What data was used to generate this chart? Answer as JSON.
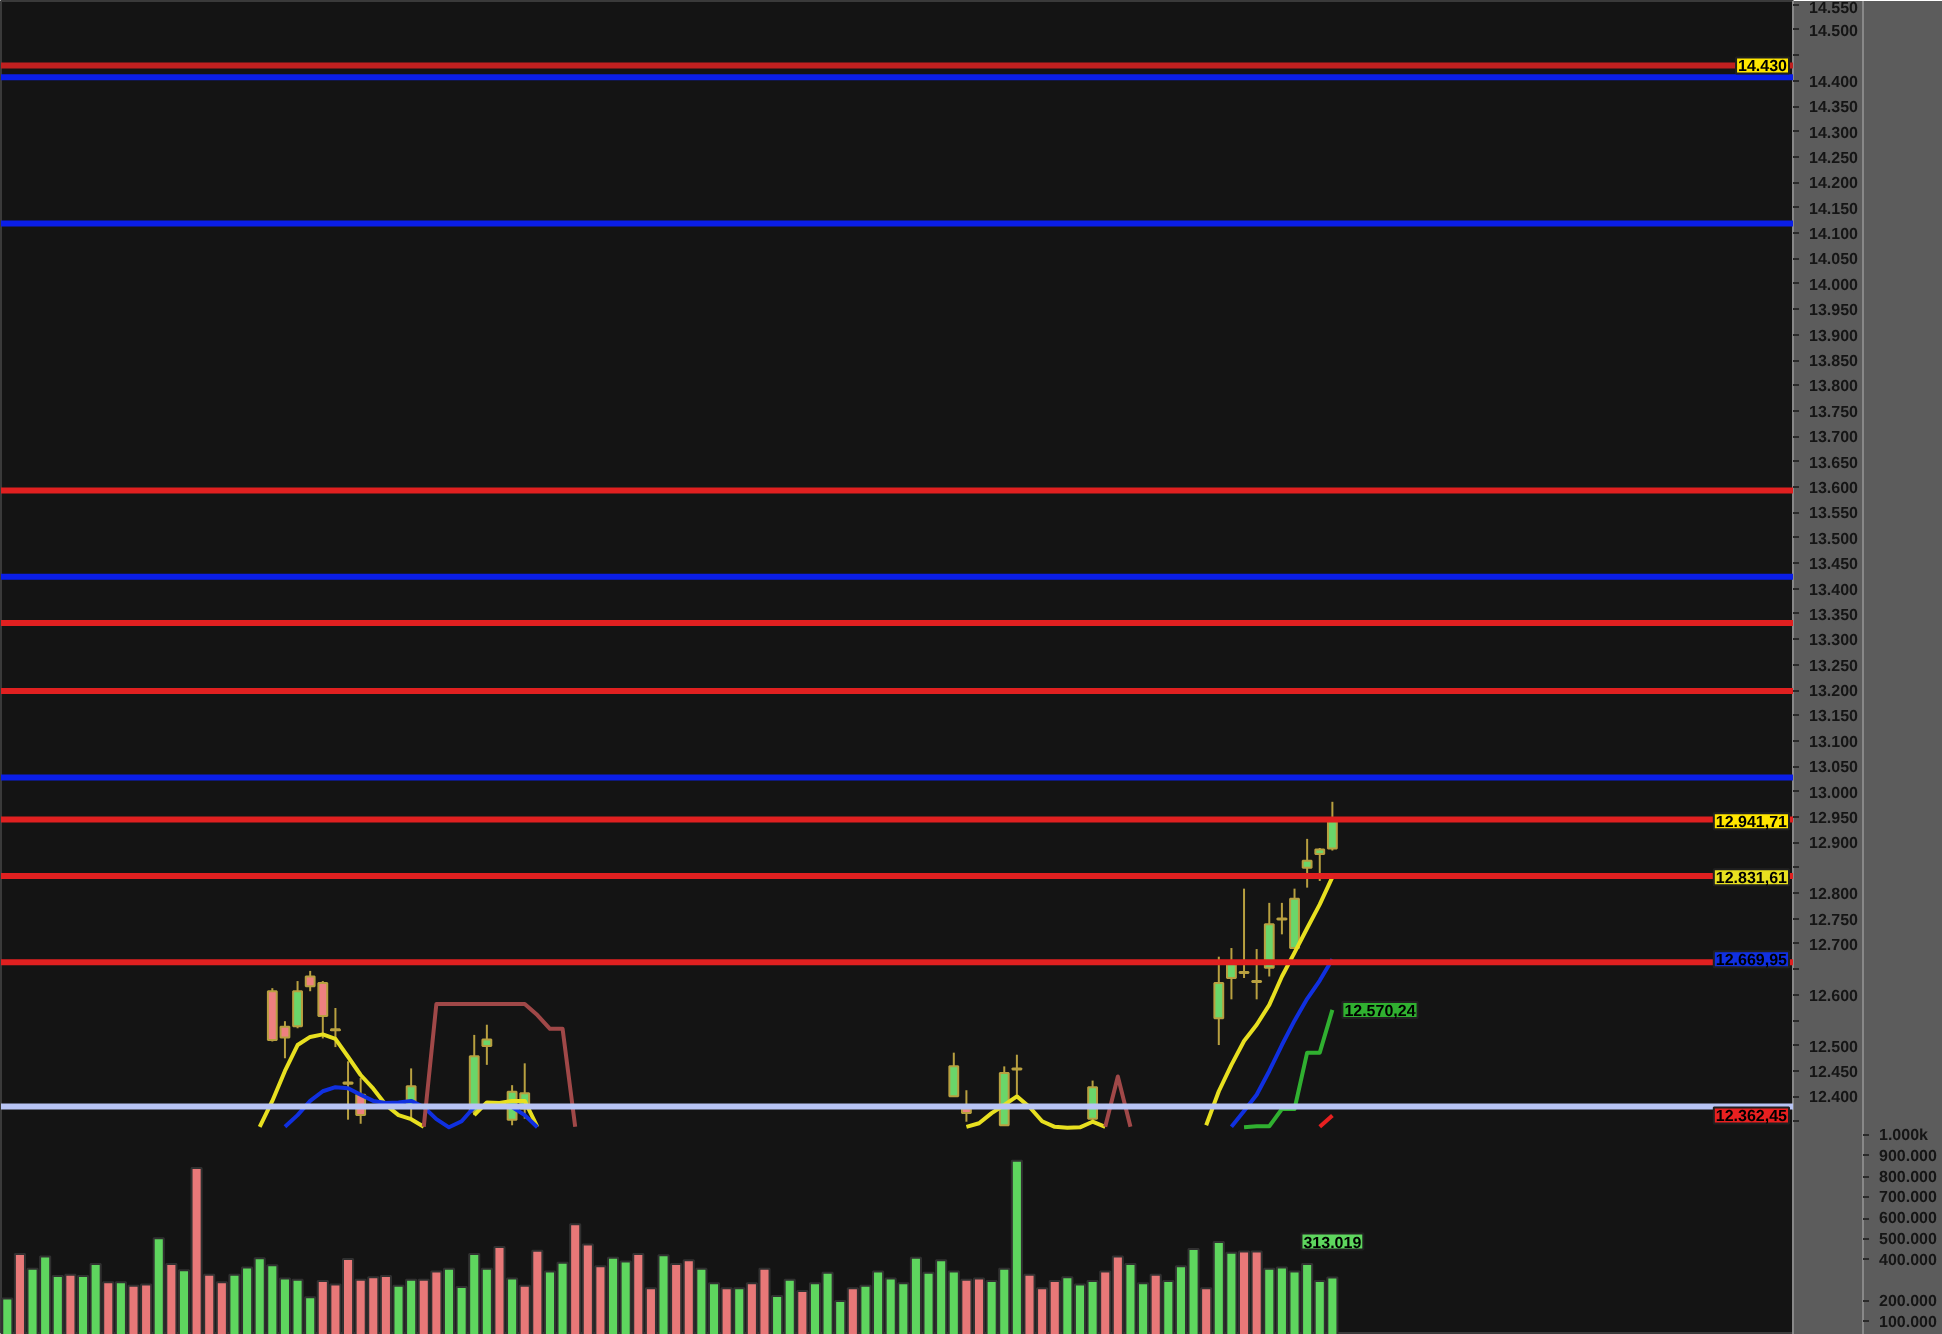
{
  "chart_data": {
    "type": "candlestick",
    "categories": [
      null,
      null,
      null,
      null,
      null,
      null,
      null,
      null,
      null,
      null,
      null,
      null,
      null,
      null,
      null,
      null,
      null,
      null,
      null,
      null,
      null,
      null,
      null,
      null,
      null,
      null,
      null,
      null,
      null,
      null,
      null,
      null,
      null,
      null,
      null,
      null,
      null,
      null,
      null,
      null,
      null,
      null,
      null,
      null,
      null,
      null,
      null,
      null,
      null,
      null,
      null,
      null,
      null,
      null,
      null,
      null,
      null,
      null,
      null,
      null,
      null,
      null,
      null,
      null,
      null,
      null,
      null,
      null,
      null,
      null,
      null,
      null,
      null,
      null,
      null,
      null,
      null,
      null,
      null,
      null,
      null,
      null,
      null,
      null,
      null,
      null,
      null,
      null,
      null,
      null,
      null,
      null,
      null,
      null,
      null,
      null,
      null,
      null,
      null,
      null,
      null,
      null,
      null,
      null,
      null,
      null,
      null,
      null,
      null,
      null,
      null,
      null,
      null,
      null,
      null,
      null,
      null,
      null,
      null,
      null,
      null,
      null,
      null,
      null,
      null,
      null,
      null,
      null,
      null,
      null,
      null,
      null,
      null,
      null,
      null,
      null,
      null,
      null,
      null,
      null,
      null,
      null
    ],
    "ohlc": [
      null,
      null,
      null,
      null,
      null,
      null,
      null,
      null,
      null,
      null,
      null,
      null,
      null,
      null,
      null,
      null,
      null,
      null,
      null,
      null,
      null,
      [
        12607,
        12613,
        12508,
        12511
      ],
      [
        12537,
        12548,
        12475,
        12516
      ],
      [
        12538,
        12627,
        12534,
        12607
      ],
      [
        12636,
        12647,
        12607,
        12617
      ],
      [
        12623,
        12627,
        12514,
        12558
      ],
      [
        12532,
        12574,
        12497,
        12530
      ],
      [
        12425,
        12469,
        12354,
        12427
      ],
      [
        12403,
        12436,
        12346,
        12363
      ],
      null,
      null,
      null,
      [
        12383,
        12455,
        12354,
        12420
      ],
      null,
      null,
      null,
      null,
      [
        12370,
        12521,
        12363,
        12479
      ],
      [
        12499,
        12541,
        12462,
        12512
      ],
      null,
      [
        12354,
        12422,
        12343,
        12409
      ],
      [
        12376,
        12465,
        12356,
        12406
      ],
      null,
      null,
      null,
      null,
      null,
      null,
      null,
      null,
      null,
      null,
      null,
      null,
      null,
      null,
      null,
      null,
      null,
      null,
      null,
      null,
      null,
      null,
      null,
      null,
      null,
      null,
      null,
      null,
      null,
      null,
      null,
      null,
      null,
      [
        12400,
        12486,
        12400,
        12459
      ],
      [
        12376,
        12412,
        12350,
        12367
      ],
      null,
      null,
      [
        12343,
        12459,
        12343,
        12446
      ],
      [
        12455,
        12482,
        12403,
        12453
      ],
      null,
      null,
      null,
      null,
      null,
      [
        12356,
        12431,
        12351,
        12418
      ],
      null,
      null,
      null,
      null,
      null,
      null,
      null,
      null,
      null,
      [
        12554,
        12675,
        12501,
        12623
      ],
      [
        12633,
        12692,
        12591,
        12662
      ],
      [
        12645,
        12809,
        12633,
        12643
      ],
      [
        12625,
        12690,
        12591,
        12627
      ],
      [
        12653,
        12781,
        12636,
        12739
      ],
      [
        12748,
        12781,
        12719,
        12750
      ],
      [
        12692,
        12809,
        12692,
        12789
      ],
      [
        12850,
        12907,
        12811,
        12864
      ],
      [
        12877,
        12889,
        12824,
        12886
      ],
      [
        12888,
        12980,
        12884,
        12941.71
      ],
      null,
      null,
      null,
      null,
      null,
      null,
      null,
      null,
      null,
      null,
      null,
      null,
      null,
      null,
      null,
      null,
      null,
      null,
      null,
      null,
      null,
      null,
      null,
      null,
      null,
      null,
      null,
      null,
      null,
      null,
      null,
      null,
      null,
      null,
      null,
      null
    ],
    "series": [
      {
        "type": "line",
        "color": "#e8e020",
        "values": [
          null,
          null,
          null,
          null,
          null,
          null,
          null,
          null,
          null,
          null,
          null,
          null,
          null,
          null,
          null,
          null,
          null,
          null,
          null,
          null,
          12340,
          12391,
          12450,
          12501,
          12517,
          12522,
          12513,
          12478,
          12442,
          12415,
          12383,
          12363,
          12355,
          12340,
          null,
          null,
          null,
          12363,
          12388,
          12387,
          12391,
          12391,
          12340,
          null,
          null,
          null,
          null,
          null,
          null,
          null,
          null,
          null,
          null,
          null,
          null,
          null,
          null,
          null,
          null,
          null,
          null,
          null,
          null,
          null,
          null,
          null,
          null,
          null,
          null,
          null,
          null,
          null,
          null,
          null,
          null,
          null,
          12340,
          12347,
          12367,
          12383,
          12400,
          12379,
          12351,
          12340,
          12338,
          12339,
          12350,
          12340,
          null,
          null,
          null,
          null,
          null,
          null,
          null,
          12343,
          12410,
          12462,
          12509,
          12541,
          12580,
          12636,
          12683,
          12731,
          12778,
          12831.61,
          null,
          null,
          null,
          null,
          null,
          null,
          null,
          null,
          null,
          null,
          null,
          null,
          null,
          null,
          null,
          null,
          null,
          null,
          null,
          null,
          null,
          null,
          null,
          null,
          null,
          null,
          null,
          null,
          null,
          null,
          null,
          null,
          null,
          null,
          null,
          null
        ]
      },
      {
        "type": "line",
        "color": "#1030e0",
        "values": [
          null,
          null,
          null,
          null,
          null,
          null,
          null,
          null,
          null,
          null,
          null,
          null,
          null,
          null,
          null,
          null,
          null,
          null,
          null,
          null,
          null,
          null,
          12340,
          12363,
          12391,
          12410,
          12418,
          12416,
          12403,
          12391,
          12387,
          12388,
          12391,
          12379,
          12355,
          12339,
          12351,
          12379,
          12379,
          12379,
          12379,
          12363,
          12339,
          null,
          null,
          null,
          null,
          null,
          null,
          null,
          null,
          null,
          null,
          null,
          null,
          null,
          null,
          null,
          null,
          null,
          null,
          null,
          null,
          null,
          null,
          null,
          null,
          null,
          null,
          null,
          null,
          null,
          null,
          null,
          null,
          null,
          null,
          null,
          null,
          null,
          null,
          null,
          null,
          null,
          null,
          null,
          null,
          null,
          null,
          null,
          null,
          null,
          null,
          null,
          null,
          null,
          null,
          12340,
          12371,
          12403,
          12450,
          12501,
          12549,
          12592,
          12628,
          12669.95,
          null,
          null,
          null,
          null,
          null,
          null,
          null,
          null,
          null,
          null,
          null,
          null,
          null,
          null,
          null,
          null,
          null,
          null,
          null,
          null,
          null,
          null,
          null,
          null,
          null,
          null,
          null,
          null,
          null,
          null,
          null,
          null,
          null,
          null,
          null,
          null
        ]
      },
      {
        "type": "line",
        "color": "#30b030",
        "values": [
          null,
          null,
          null,
          null,
          null,
          null,
          null,
          null,
          null,
          null,
          null,
          null,
          null,
          null,
          null,
          null,
          null,
          null,
          null,
          null,
          null,
          null,
          null,
          null,
          null,
          null,
          null,
          null,
          null,
          null,
          null,
          null,
          null,
          null,
          null,
          null,
          null,
          null,
          null,
          null,
          null,
          null,
          null,
          null,
          null,
          null,
          null,
          null,
          null,
          null,
          null,
          null,
          null,
          null,
          null,
          null,
          null,
          null,
          null,
          null,
          null,
          null,
          null,
          null,
          null,
          null,
          null,
          null,
          null,
          null,
          null,
          null,
          null,
          null,
          null,
          null,
          null,
          null,
          null,
          null,
          null,
          null,
          null,
          null,
          null,
          null,
          null,
          null,
          null,
          null,
          null,
          null,
          null,
          null,
          null,
          null,
          null,
          null,
          12339,
          12341,
          12341,
          12375,
          12375,
          12486,
          12486,
          12570.24,
          null,
          null,
          null,
          null,
          null,
          null,
          null,
          null,
          null,
          null,
          null,
          null,
          null,
          null,
          null,
          null,
          null,
          null,
          null,
          null,
          null,
          null,
          null,
          null,
          null,
          null,
          null,
          null,
          null,
          null,
          null,
          null,
          null,
          null,
          null,
          null
        ],
        "value_labels": [
          null,
          null,
          null,
          null,
          null,
          null,
          null,
          null,
          null,
          null,
          null,
          null,
          null,
          null,
          null,
          null,
          null,
          null,
          null,
          null,
          null,
          null,
          null,
          null,
          null,
          null,
          null,
          null,
          null,
          null,
          null,
          null,
          null,
          null,
          null,
          null,
          null,
          null,
          null,
          null,
          null,
          null,
          null,
          null,
          null,
          null,
          null,
          null,
          null,
          null,
          null,
          null,
          null,
          null,
          null,
          null,
          null,
          null,
          null,
          null,
          null,
          null,
          null,
          null,
          null,
          null,
          null,
          null,
          null,
          null,
          null,
          null,
          null,
          null,
          null,
          null,
          null,
          null,
          null,
          null,
          null,
          null,
          null,
          null,
          null,
          null,
          null,
          null,
          null,
          null,
          null,
          null,
          null,
          null,
          null,
          null,
          null,
          null,
          null,
          null,
          null,
          null,
          null,
          null,
          null,
          "12.570,24",
          null,
          null,
          null,
          null,
          null,
          null,
          null,
          null,
          null,
          null,
          null,
          null,
          null,
          null,
          null,
          null,
          null,
          null,
          null,
          null,
          null,
          null,
          null,
          null,
          null,
          null,
          null,
          null,
          null,
          null,
          null,
          null,
          null,
          null,
          null,
          null
        ]
      },
      {
        "type": "line",
        "color": "#e82020",
        "values": [
          null,
          null,
          null,
          null,
          null,
          null,
          null,
          null,
          null,
          null,
          null,
          null,
          null,
          null,
          null,
          null,
          null,
          null,
          null,
          null,
          null,
          null,
          null,
          null,
          null,
          null,
          null,
          null,
          null,
          null,
          null,
          null,
          null,
          null,
          null,
          null,
          null,
          null,
          null,
          null,
          null,
          null,
          null,
          null,
          null,
          null,
          null,
          null,
          null,
          null,
          null,
          null,
          null,
          null,
          null,
          null,
          null,
          null,
          null,
          null,
          null,
          null,
          null,
          null,
          null,
          null,
          null,
          null,
          null,
          null,
          null,
          null,
          null,
          null,
          null,
          null,
          null,
          null,
          null,
          null,
          null,
          null,
          null,
          null,
          null,
          null,
          null,
          null,
          null,
          null,
          null,
          null,
          null,
          null,
          null,
          null,
          null,
          null,
          null,
          null,
          null,
          null,
          null,
          null,
          12340,
          12362.45,
          null,
          null,
          null,
          null,
          null,
          null,
          null,
          null,
          null,
          null,
          null,
          null,
          null,
          null,
          null,
          null,
          null,
          null,
          null,
          null,
          null,
          null,
          null,
          null,
          null,
          null,
          null,
          null,
          null,
          null,
          null,
          null,
          null,
          null,
          null,
          null
        ]
      },
      {
        "type": "line",
        "color": "#a04848",
        "values": [
          null,
          null,
          null,
          null,
          null,
          null,
          null,
          null,
          null,
          null,
          null,
          null,
          null,
          null,
          null,
          null,
          null,
          null,
          null,
          null,
          null,
          null,
          null,
          null,
          null,
          null,
          null,
          null,
          null,
          null,
          null,
          null,
          null,
          12340,
          12582,
          12582,
          12582,
          12582,
          12582,
          12582,
          12582,
          12582,
          12560,
          12533,
          12533,
          12340,
          null,
          null,
          null,
          null,
          null,
          null,
          null,
          null,
          null,
          null,
          null,
          null,
          null,
          null,
          null,
          null,
          null,
          null,
          null,
          null,
          null,
          null,
          null,
          null,
          null,
          null,
          null,
          null,
          null,
          null,
          null,
          null,
          null,
          null,
          null,
          null,
          null,
          null,
          null,
          null,
          null,
          12340,
          12439,
          12340,
          null,
          null,
          null,
          null,
          null,
          null,
          null,
          null,
          null,
          null,
          null,
          null,
          null,
          null,
          null,
          null,
          null,
          null,
          null,
          null,
          null,
          null,
          null,
          null,
          null,
          null,
          null,
          null,
          null,
          null,
          null,
          null,
          null,
          null,
          null,
          null,
          null,
          null,
          null,
          null,
          null,
          null,
          null,
          null,
          null,
          null,
          null,
          null,
          null,
          null,
          null,
          null
        ]
      },
      {
        "type": "bar",
        "axis": "y2",
        "values": [
          212000,
          427000,
          355000,
          415000,
          321000,
          327000,
          321000,
          379000,
          291000,
          291000,
          273000,
          279000,
          503000,
          379000,
          348000,
          842000,
          327000,
          291000,
          327000,
          361000,
          406000,
          373000,
          309000,
          303000,
          218000,
          297000,
          279000,
          403000,
          303000,
          315000,
          321000,
          273000,
          303000,
          303000,
          342000,
          355000,
          267000,
          427000,
          355000,
          461000,
          309000,
          273000,
          442000,
          342000,
          385000,
          570000,
          473000,
          367000,
          409000,
          391000,
          427000,
          261000,
          421000,
          379000,
          397000,
          355000,
          285000,
          261000,
          261000,
          285000,
          355000,
          224000,
          303000,
          248000,
          285000,
          336000,
          200000,
          261000,
          273000,
          342000,
          309000,
          285000,
          409000,
          336000,
          397000,
          342000,
          303000,
          309000,
          297000,
          355000,
          876000,
          327000,
          261000,
          297000,
          315000,
          279000,
          297000,
          342000,
          415000,
          379000,
          285000,
          327000,
          297000,
          367000,
          451000,
          261000,
          485000,
          433000,
          439000,
          439000,
          355000,
          361000,
          342000,
          379000,
          297000,
          313019,
          null,
          null,
          null,
          null,
          null,
          null,
          null,
          null,
          null,
          null,
          null,
          null,
          null,
          null,
          null,
          null,
          null,
          null,
          null,
          null,
          null,
          null,
          null,
          null,
          null,
          null,
          null,
          null,
          null,
          null,
          null,
          null,
          null,
          null,
          null,
          null
        ],
        "colors": [
          "#5ed65e",
          "#e87878",
          "#5ed65e",
          "#5ed65e",
          "#5ed65e",
          "#e87878",
          "#5ed65e",
          "#5ed65e",
          "#e87878",
          "#5ed65e",
          "#e87878",
          "#e87878",
          "#5ed65e",
          "#e87878",
          "#5ed65e",
          "#e87878",
          "#e87878",
          "#e87878",
          "#5ed65e",
          "#5ed65e",
          "#5ed65e",
          "#5ed65e",
          "#5ed65e",
          "#5ed65e",
          "#5ed65e",
          "#e87878",
          "#e87878",
          "#e87878",
          "#e87878",
          "#e87878",
          "#e87878",
          "#5ed65e",
          "#5ed65e",
          "#e87878",
          "#e87878",
          "#5ed65e",
          "#5ed65e",
          "#5ed65e",
          "#5ed65e",
          "#e87878",
          "#5ed65e",
          "#e87878",
          "#e87878",
          "#5ed65e",
          "#5ed65e",
          "#e87878",
          "#e87878",
          "#e87878",
          "#5ed65e",
          "#5ed65e",
          "#e87878",
          "#e87878",
          "#5ed65e",
          "#e87878",
          "#e87878",
          "#5ed65e",
          "#5ed65e",
          "#e87878",
          "#5ed65e",
          "#e87878",
          "#e87878",
          "#5ed65e",
          "#5ed65e",
          "#e87878",
          "#5ed65e",
          "#5ed65e",
          "#5ed65e",
          "#e87878",
          "#5ed65e",
          "#5ed65e",
          "#5ed65e",
          "#5ed65e",
          "#5ed65e",
          "#5ed65e",
          "#5ed65e",
          "#5ed65e",
          "#e87878",
          "#e87878",
          "#5ed65e",
          "#5ed65e",
          "#5ed65e",
          "#e87878",
          "#e87878",
          "#e87878",
          "#5ed65e",
          "#5ed65e",
          "#5ed65e",
          "#e87878",
          "#e87878",
          "#5ed65e",
          "#5ed65e",
          "#e87878",
          "#5ed65e",
          "#5ed65e",
          "#5ed65e",
          "#e87878",
          "#5ed65e",
          "#5ed65e",
          "#e87878",
          "#e87878",
          "#5ed65e",
          "#5ed65e",
          "#5ed65e",
          "#5ed65e",
          "#5ed65e",
          "#5ed65e",
          null,
          null,
          null,
          null,
          null,
          null,
          null,
          null,
          null,
          null,
          null,
          null,
          null,
          null,
          null,
          null,
          null,
          null,
          null,
          null,
          null,
          null,
          null,
          null,
          null,
          null,
          null,
          null,
          null,
          null,
          null,
          null,
          null,
          null,
          null,
          null
        ],
        "value_labels": [
          null,
          null,
          null,
          null,
          null,
          null,
          null,
          null,
          null,
          null,
          null,
          null,
          null,
          null,
          null,
          null,
          null,
          null,
          null,
          null,
          null,
          null,
          null,
          null,
          null,
          null,
          null,
          null,
          null,
          null,
          null,
          null,
          null,
          null,
          null,
          null,
          null,
          null,
          null,
          null,
          null,
          null,
          null,
          null,
          null,
          null,
          null,
          null,
          null,
          null,
          null,
          null,
          null,
          null,
          null,
          null,
          null,
          null,
          null,
          null,
          null,
          null,
          null,
          null,
          null,
          null,
          null,
          null,
          null,
          null,
          null,
          null,
          null,
          null,
          null,
          null,
          null,
          null,
          null,
          null,
          null,
          null,
          null,
          null,
          null,
          null,
          null,
          null,
          null,
          null,
          null,
          null,
          null,
          null,
          null,
          null,
          null,
          null,
          null,
          null,
          null,
          null,
          null,
          null,
          null,
          "313.019",
          null,
          null,
          null,
          null,
          null,
          null,
          null,
          null,
          null,
          null,
          null,
          null,
          null,
          null,
          null,
          null,
          null,
          null,
          null,
          null,
          null,
          null,
          null,
          null,
          null,
          null,
          null,
          null,
          null,
          null,
          null,
          null,
          null,
          null,
          null,
          null
        ]
      }
    ],
    "ylim": [
      11930,
      14557
    ],
    "yticks": [
      {
        "value": 12350,
        "label": null
      },
      {
        "value": 12400,
        "label": "12.400"
      },
      {
        "value": 12450,
        "label": "12.450"
      },
      {
        "value": 12500,
        "label": "12.500"
      },
      {
        "value": 12550,
        "label": null
      },
      {
        "value": 12600,
        "label": "12.600"
      },
      {
        "value": 12650,
        "label": null
      },
      {
        "value": 12700,
        "label": "12.700"
      },
      {
        "value": 12750,
        "label": "12.750"
      },
      {
        "value": 12800,
        "label": "12.800"
      },
      {
        "value": 12850,
        "label": null
      },
      {
        "value": 12900,
        "label": "12.900"
      },
      {
        "value": 12950,
        "label": "12.950"
      },
      {
        "value": 13000,
        "label": "13.000"
      },
      {
        "value": 13050,
        "label": "13.050"
      },
      {
        "value": 13100,
        "label": "13.100"
      },
      {
        "value": 13150,
        "label": "13.150"
      },
      {
        "value": 13200,
        "label": "13.200"
      },
      {
        "value": 13250,
        "label": "13.250"
      },
      {
        "value": 13300,
        "label": "13.300"
      },
      {
        "value": 13350,
        "label": "13.350"
      },
      {
        "value": 13400,
        "label": "13.400"
      },
      {
        "value": 13450,
        "label": "13.450"
      },
      {
        "value": 13500,
        "label": "13.500"
      },
      {
        "value": 13550,
        "label": "13.550"
      },
      {
        "value": 13600,
        "label": "13.600"
      },
      {
        "value": 13650,
        "label": "13.650"
      },
      {
        "value": 13700,
        "label": "13.700"
      },
      {
        "value": 13750,
        "label": "13.750"
      },
      {
        "value": 13800,
        "label": "13.800"
      },
      {
        "value": 13850,
        "label": "13.850"
      },
      {
        "value": 13900,
        "label": "13.900"
      },
      {
        "value": 13950,
        "label": "13.950"
      },
      {
        "value": 14000,
        "label": "14.000"
      },
      {
        "value": 14050,
        "label": "14.050"
      },
      {
        "value": 14100,
        "label": "14.100"
      },
      {
        "value": 14150,
        "label": "14.150"
      },
      {
        "value": 14200,
        "label": "14.200"
      },
      {
        "value": 14250,
        "label": "14.250"
      },
      {
        "value": 14300,
        "label": "14.300"
      },
      {
        "value": 14350,
        "label": "14.350"
      },
      {
        "value": 14400,
        "label": "14.400"
      },
      {
        "value": 14450,
        "label": null
      },
      {
        "value": 14500,
        "label": "14.500"
      },
      {
        "value": 14550,
        "label": "14.550"
      }
    ],
    "y2lim": [
      36000,
      6470000
    ],
    "y2ticks": [
      {
        "value": 100000,
        "label": "100.000"
      },
      {
        "value": 200000,
        "label": "200.000"
      },
      {
        "value": 400000,
        "label": "400.000"
      },
      {
        "value": 500000,
        "label": "500.000"
      },
      {
        "value": 600000,
        "label": "600.000"
      },
      {
        "value": 700000,
        "label": "700.000"
      },
      {
        "value": 800000,
        "label": "800.000"
      },
      {
        "value": 900000,
        "label": "900.000"
      },
      {
        "value": 1000000,
        "label": "1.000k"
      }
    ],
    "ref_lines": [
      {
        "axis": "y",
        "value": 14430,
        "label": "14.430",
        "color": "#c02020"
      },
      {
        "axis": "y",
        "value": 14407,
        "color": "#0a1ee8"
      },
      {
        "axis": "y",
        "value": 14119,
        "color": "#0a1ee8"
      },
      {
        "axis": "y",
        "value": 13593,
        "color": "#e02020"
      },
      {
        "axis": "y",
        "value": 13423,
        "color": "#0a1ee8"
      },
      {
        "axis": "y",
        "value": 13332,
        "color": "#e02020"
      },
      {
        "axis": "y",
        "value": 13198,
        "color": "#e02020"
      },
      {
        "axis": "y",
        "value": 13028,
        "color": "#0a1ee8"
      },
      {
        "axis": "y",
        "value": 12945,
        "color": "#e02020"
      },
      {
        "axis": "y",
        "value": 12834,
        "color": "#e02020"
      },
      {
        "axis": "y",
        "value": 12664,
        "color": "#e02020"
      },
      {
        "axis": "y",
        "value": 12380,
        "color": "#b8c4f4"
      }
    ],
    "annotations": [
      {
        "text": "12.941,71",
        "y": 12941.71
      },
      {
        "text": "12.831,61",
        "y": 12831.61
      },
      {
        "text": "12.669,95",
        "y": 12669.95
      },
      {
        "text": "12.362,45",
        "y": 12362.45
      }
    ],
    "tick_labels": "y"
  }
}
